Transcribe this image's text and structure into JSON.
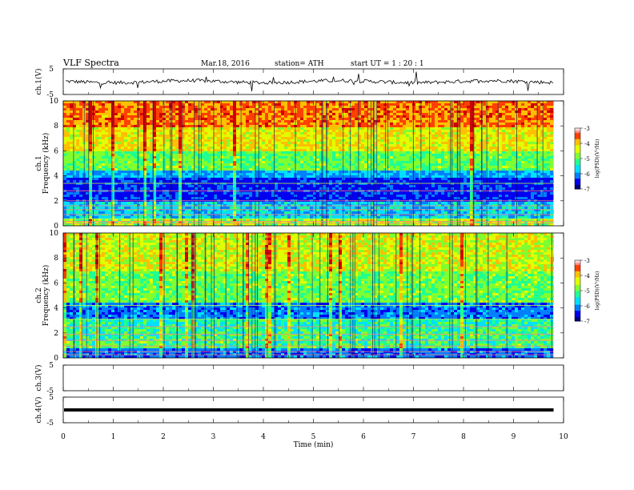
{
  "header": {
    "title": "VLF  Spectra",
    "date": "Mar.18, 2016",
    "station": "station= ATH",
    "start": "start  UT  =   1  : 20 : 1"
  },
  "chart_data": {
    "type": "heatmap",
    "xlabel": "Time  (min)",
    "xlim": [
      0,
      10
    ],
    "x_ticks": [
      "0",
      "1",
      "2",
      "3",
      "4",
      "5",
      "6",
      "7",
      "8",
      "9",
      "10"
    ],
    "data_extent_min": 9.8,
    "panels": [
      {
        "id": "ch1-waveform",
        "type": "line",
        "ylabel": "ch.1(V)",
        "ylim": [
          -5,
          5
        ],
        "y_ticks": [
          "5",
          "-5"
        ],
        "mean": 0.0
      },
      {
        "id": "ch1-spectrogram",
        "type": "heatmap",
        "ylabel": "Frequency  (kHz)",
        "channel_label": "ch.1",
        "ylim": [
          0,
          10
        ],
        "y_ticks": [
          "0",
          "2",
          "4",
          "6",
          "8",
          "10"
        ],
        "colorbar": {
          "label": "log(PSD)(V²/Hz)",
          "range": [
            -7,
            -3
          ],
          "ticks": [
            "-3",
            "-4",
            "-5",
            "-6",
            "-7"
          ]
        }
      },
      {
        "id": "ch2-spectrogram",
        "type": "heatmap",
        "ylabel": "Frequency  (kHz)",
        "channel_label": "ch.2",
        "ylim": [
          0,
          10
        ],
        "y_ticks": [
          "0",
          "2",
          "4",
          "6",
          "8",
          "10"
        ],
        "colorbar": {
          "label": "log(PSD)(V²/Hz)",
          "range": [
            -7,
            -3
          ],
          "ticks": [
            "-3",
            "-4",
            "-5",
            "-6",
            "-7"
          ]
        }
      },
      {
        "id": "ch3-waveform",
        "type": "line",
        "ylabel": "ch.3(V)",
        "ylim": [
          -5,
          5
        ],
        "y_ticks": [
          "5",
          "-5"
        ],
        "mean": null
      },
      {
        "id": "ch4-waveform",
        "type": "line",
        "ylabel": "ch.4(V)",
        "ylim": [
          -5,
          5
        ],
        "y_ticks": [
          "5",
          "-5"
        ],
        "mean": 0.0
      }
    ],
    "colormap": [
      "#00007e",
      "#0000f0",
      "#0080ff",
      "#00e0ff",
      "#20ff90",
      "#80ff30",
      "#e0ff00",
      "#ffc000",
      "#ff4000",
      "#d00000"
    ]
  }
}
